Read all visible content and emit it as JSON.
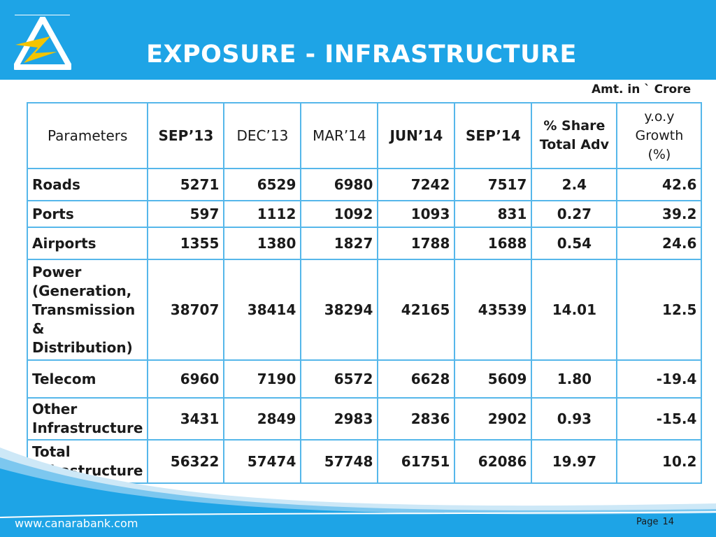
{
  "header": {
    "title": "EXPOSURE - INFRASTRUCTURE",
    "amount_note": "Amt. in ` Crore",
    "brand_color": "#1ea4e6",
    "logo_colors": [
      "#f4c400",
      "#ffffff"
    ]
  },
  "table": {
    "columns": [
      "Parameters",
      "SEP’13",
      "DEC’13",
      "MAR’14",
      "JUN’14",
      "SEP’14",
      "% Share Total Adv",
      "y.o.y Growth (%)"
    ],
    "column_lines": {
      "share": [
        "% Share",
        "Total Adv"
      ],
      "growth": [
        "y.o.y",
        "Growth",
        "(%)"
      ]
    },
    "rows": [
      {
        "label": [
          "Roads"
        ],
        "values": [
          "5271",
          "6529",
          "6980",
          "7242",
          "7517"
        ],
        "share": "2.4",
        "growth": "42.6"
      },
      {
        "label": [
          "Ports"
        ],
        "values": [
          "597",
          "1112",
          "1092",
          "1093",
          "831"
        ],
        "share": "0.27",
        "growth": "39.2"
      },
      {
        "label": [
          "Airports"
        ],
        "values": [
          "1355",
          "1380",
          "1827",
          "1788",
          "1688"
        ],
        "share": "0.54",
        "growth": "24.6"
      },
      {
        "label": [
          "Power",
          "(Generation,",
          "Transmission",
          "&",
          "Distribution)"
        ],
        "values": [
          "38707",
          "38414",
          "38294",
          "42165",
          "43539"
        ],
        "share": "14.01",
        "growth": "12.5"
      },
      {
        "label": [
          "Telecom"
        ],
        "values": [
          "6960",
          "7190",
          "6572",
          "6628",
          "5609"
        ],
        "share": "1.80",
        "growth": "-19.4"
      },
      {
        "label": [
          "Other",
          "Infrastructure"
        ],
        "values": [
          "3431",
          "2849",
          "2983",
          "2836",
          "2902"
        ],
        "share": "0.93",
        "growth": "-15.4"
      },
      {
        "label": [
          "Total",
          "Infrastructure"
        ],
        "values": [
          "56322",
          "57474",
          "57748",
          "61751",
          "62086"
        ],
        "share": "19.97",
        "growth": "10.2"
      }
    ]
  },
  "footer": {
    "url": "www.canarabank.com",
    "page_label": "Page",
    "page_number": "14"
  }
}
